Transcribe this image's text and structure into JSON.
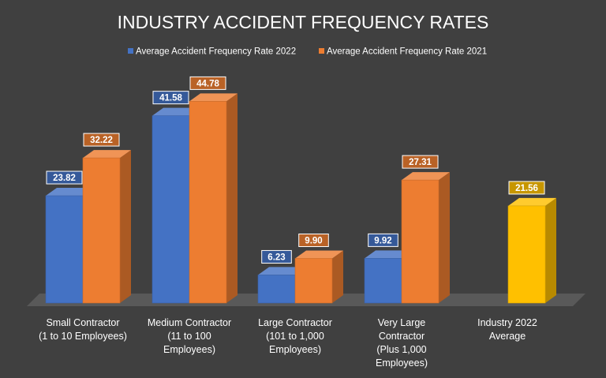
{
  "chart_data": {
    "type": "bar",
    "title": "INDUSTRY ACCIDENT FREQUENCY RATES",
    "categories": [
      [
        "Small Contractor",
        "(1 to 10 Employees)"
      ],
      [
        "Medium Contractor",
        "(11 to 100",
        "Employees)"
      ],
      [
        "Large Contractor",
        "(101 to 1,000",
        "Employees)"
      ],
      [
        "Very Large",
        "Contractor",
        "(Plus 1,000",
        "Employees)"
      ],
      [
        "Industry 2022",
        "Average"
      ]
    ],
    "series": [
      {
        "name": "Average Accident Frequency Rate 2022",
        "color": "#4472C4",
        "values": [
          23.82,
          41.58,
          6.23,
          9.92,
          null
        ],
        "labels": [
          "23.82",
          "41.58",
          "6.23",
          "9.92",
          ""
        ]
      },
      {
        "name": "Average Accident Frequency Rate 2021",
        "color": "#ED7D31",
        "values": [
          32.22,
          44.78,
          9.9,
          27.31,
          null
        ],
        "labels": [
          "32.22",
          "44.78",
          "9.90",
          "27.31",
          ""
        ]
      },
      {
        "name": "Industry 2022 Average",
        "color": "#FFC000",
        "values": [
          null,
          null,
          null,
          null,
          21.56
        ],
        "labels": [
          "",
          "",
          "",
          "",
          "21.56"
        ],
        "in_legend": false
      }
    ],
    "ylim": [
      0,
      48
    ],
    "grid": false,
    "legend_position": "top"
  },
  "colors": {
    "background": "#404040",
    "floor": "#595959",
    "text": "#FFFFFF"
  }
}
